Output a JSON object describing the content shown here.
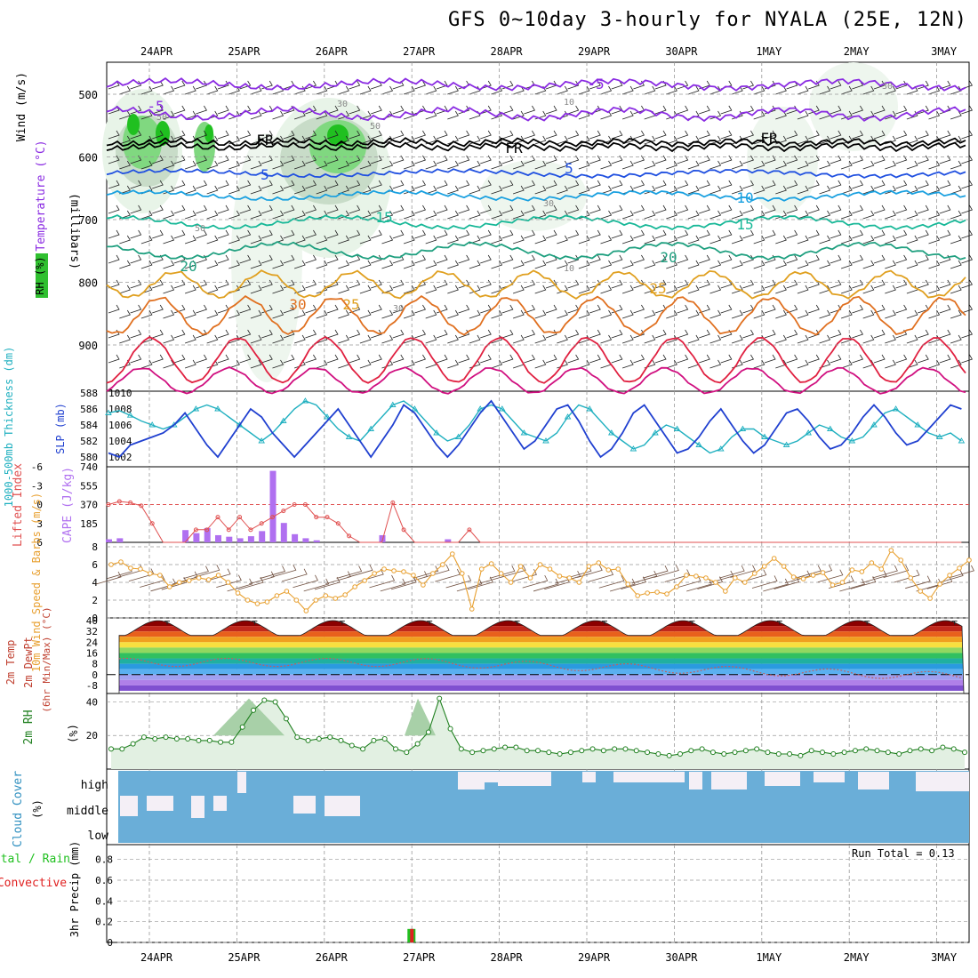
{
  "title": "GFS 0~10day 3-hourly for NYALA (25E, 12N)",
  "dates": [
    "24APR",
    "25APR",
    "26APR",
    "27APR",
    "28APR",
    "29APR",
    "30APR",
    "1MAY",
    "2MAY",
    "3MAY"
  ],
  "colors": {
    "grid": "#999999",
    "purple": "#8a2be2",
    "black": "#000000",
    "blue": "#2050e0",
    "cyan": "#19a0e0",
    "teal": "#18b898",
    "green": "#20a080",
    "orange": "#e0a020",
    "darkorange": "#e07020",
    "red": "#e02040",
    "magenta": "#d01080",
    "rhgreen": "#30c030",
    "cape": "#b070f0",
    "li": "#e05050",
    "wind10": "#e8a030",
    "slp": "#2040d0",
    "thick": "#20b0c0",
    "cloud": "#6aaed8",
    "precipGreen": "#20c020",
    "precipRed": "#e02020"
  },
  "chart_data": [
    {
      "type": "line",
      "name": "sounding",
      "labels": {
        "ylabel_mb": "(millibars)",
        "ylabel_wind": "Wind (m/s)",
        "ylabel_temp": "Temperature (°C)",
        "ylabel_rh": "RH (%)",
        "freezing": "FR"
      },
      "yticks": [
        500,
        600,
        700,
        800,
        900
      ],
      "isotherm_labels": [
        {
          "v": "-5",
          "c": "purple"
        },
        {
          "v": "-5",
          "c": "purple"
        },
        {
          "v": "FR",
          "c": "black"
        },
        {
          "v": "FR",
          "c": "black"
        },
        {
          "v": "FR",
          "c": "black"
        },
        {
          "v": "5",
          "c": "blue"
        },
        {
          "v": "5",
          "c": "blue"
        },
        {
          "v": "10",
          "c": "cyan"
        },
        {
          "v": "15",
          "c": "teal"
        },
        {
          "v": "15",
          "c": "teal"
        },
        {
          "v": "20",
          "c": "green"
        },
        {
          "v": "20",
          "c": "green"
        },
        {
          "v": "25",
          "c": "orange"
        },
        {
          "v": "25",
          "c": "orange"
        },
        {
          "v": "30",
          "c": "darkorange"
        }
      ],
      "rh_labels": [
        "50",
        "50",
        "30",
        "30",
        "10",
        "10",
        "30",
        "30",
        "50"
      ]
    },
    {
      "type": "line",
      "name": "slp-thickness",
      "ylabel_left": "1000-500mb Thickness (dm)",
      "ylabel_right": "SLP (mb)",
      "left_ticks": [
        580,
        582,
        584,
        586,
        588
      ],
      "right_ticks": [
        1002,
        1004,
        1006,
        1008,
        1010
      ],
      "slp": [
        1002.5,
        1002.0,
        1003.5,
        1004.0,
        1004.5,
        1005.0,
        1006.0,
        1007.5,
        1005.5,
        1003.5,
        1002.0,
        1004.0,
        1006.0,
        1008.0,
        1007.0,
        1005.0,
        1003.5,
        1002.0,
        1003.5,
        1005.0,
        1006.5,
        1008.0,
        1006.0,
        1004.0,
        1002.0,
        1004.0,
        1006.0,
        1008.5,
        1007.5,
        1005.5,
        1003.5,
        1002.0,
        1003.5,
        1005.5,
        1007.5,
        1009.0,
        1007.0,
        1005.0,
        1003.0,
        1004.0,
        1006.0,
        1008.0,
        1008.5,
        1006.5,
        1004.0,
        1002.0,
        1003.0,
        1005.0,
        1007.5,
        1008.5,
        1006.5,
        1004.5,
        1002.5,
        1003.0,
        1004.5,
        1006.5,
        1008.0,
        1006.0,
        1004.0,
        1002.5,
        1003.5,
        1005.5,
        1007.5,
        1008.0,
        1006.5,
        1004.5,
        1003.0,
        1003.5,
        1005.0,
        1007.0,
        1008.5,
        1007.0,
        1005.0,
        1003.5,
        1004.0,
        1005.5,
        1007.0,
        1008.5,
        1008.0
      ],
      "thickness": [
        585.5,
        585.8,
        585.2,
        584.5,
        584.0,
        583.5,
        584.0,
        585.0,
        586.0,
        586.5,
        586.0,
        585.0,
        584.0,
        583.0,
        582.0,
        583.0,
        584.5,
        586.0,
        587.0,
        586.5,
        585.0,
        583.5,
        582.5,
        582.0,
        583.5,
        585.0,
        586.5,
        587.0,
        586.0,
        584.5,
        583.0,
        582.0,
        582.5,
        584.0,
        586.0,
        586.5,
        586.0,
        584.5,
        583.0,
        582.5,
        582.0,
        583.0,
        585.0,
        586.5,
        586.0,
        584.5,
        583.0,
        582.0,
        581.0,
        581.5,
        583.0,
        584.0,
        583.5,
        582.5,
        581.5,
        580.5,
        581.0,
        582.5,
        583.5,
        583.5,
        582.5,
        582.0,
        581.5,
        582.0,
        583.0,
        584.0,
        583.5,
        582.5,
        582.0,
        582.5,
        584.0,
        585.5,
        586.0,
        585.0,
        584.0,
        583.0,
        582.5,
        583.0,
        582.0
      ]
    },
    {
      "type": "bar",
      "name": "cape-li",
      "ylabel_left": "Lifted Index",
      "ylabel_right": "CAPE (J/kg)",
      "li_ticks": [
        "-6",
        "-3",
        "0",
        "3",
        "6"
      ],
      "cape_ticks": [
        "740",
        "555",
        "370",
        "185"
      ],
      "cape": [
        30,
        40,
        0,
        0,
        0,
        0,
        0,
        120,
        90,
        140,
        70,
        55,
        40,
        60,
        110,
        700,
        190,
        80,
        40,
        20,
        0,
        0,
        0,
        0,
        0,
        70,
        0,
        0,
        0,
        0,
        0,
        30,
        0,
        0,
        0,
        0,
        0,
        0,
        0,
        0,
        0,
        0,
        0,
        0,
        0,
        0,
        0,
        0,
        0,
        0,
        0,
        0,
        0,
        0,
        0,
        0,
        0,
        0,
        0,
        0,
        0,
        0,
        0,
        0,
        0,
        0,
        0,
        0,
        0,
        0,
        0,
        0,
        0,
        0,
        0,
        0,
        0,
        0,
        0
      ],
      "li": [
        0,
        -0.5,
        -0.3,
        0.2,
        3,
        6,
        6,
        6,
        4,
        4,
        2,
        4,
        2,
        4,
        3,
        2,
        1,
        0,
        0,
        2,
        2,
        3,
        5,
        6,
        6,
        6,
        -0.3,
        4,
        6,
        6,
        6,
        6,
        6,
        4,
        6,
        6,
        6,
        6,
        6,
        6,
        6,
        6,
        6,
        6,
        6,
        6,
        6,
        6,
        6,
        6,
        6,
        6,
        6,
        6,
        6,
        6,
        6,
        6,
        6,
        6,
        6,
        6,
        6,
        6,
        6,
        6,
        6,
        6,
        6,
        6,
        6,
        6,
        6,
        6,
        6,
        6,
        6,
        6,
        6
      ]
    },
    {
      "type": "line",
      "name": "wind10m",
      "ylabel": "10m Wind Speed & Barbs (m/s)",
      "yticks": [
        0,
        2,
        4,
        6,
        8
      ],
      "speed": [
        6.0,
        6.3,
        5.6,
        5.5,
        5.0,
        4.8,
        3.5,
        4.0,
        4.2,
        4.5,
        4.3,
        4.8,
        4.0,
        2.8,
        2.0,
        1.6,
        1.8,
        2.5,
        3.0,
        2.0,
        0.8,
        2.0,
        2.5,
        2.2,
        2.6,
        3.5,
        4.2,
        5.0,
        5.5,
        5.3,
        5.2,
        4.8,
        3.7,
        5.0,
        6.0,
        7.2,
        5.0,
        1.0,
        5.5,
        6.1,
        5.0,
        4.0,
        5.8,
        4.5,
        6.0,
        5.5,
        4.7,
        4.5,
        4.0,
        5.8,
        6.2,
        5.4,
        5.5,
        3.8,
        2.5,
        2.8,
        2.9,
        2.7,
        3.5,
        4.8,
        4.7,
        4.5,
        4.0,
        3.0,
        4.5,
        4.0,
        5.0,
        5.8,
        6.7,
        5.8,
        4.6,
        4.4,
        4.8,
        5.1,
        3.7,
        4.0,
        5.4,
        5.2,
        6.2,
        5.5,
        7.6,
        6.5,
        4.5,
        3.0,
        2.2,
        3.8,
        4.8,
        5.6,
        6.5
      ]
    },
    {
      "type": "area",
      "name": "temp2m",
      "ylabel": "2m Temp 2m DewPt (6hr Min/Max) (°C)",
      "yticks": [
        "40",
        "32",
        "24",
        "16",
        "8",
        "0",
        "-8"
      ],
      "temp_max_daily": [
        40,
        40,
        40,
        40,
        40,
        40,
        40,
        40,
        40,
        40
      ],
      "temp_min_daily": [
        27,
        27,
        27,
        27,
        27,
        27,
        27,
        27,
        27,
        27
      ],
      "dewpoint_note": "dew point ~ 8 to 12 early, falling to about -6 later"
    },
    {
      "type": "area",
      "name": "rh2m",
      "ylabel": "2m RH (%)",
      "yticks": [
        20,
        40
      ],
      "rh": [
        12,
        12,
        15,
        19,
        18,
        19,
        18,
        18,
        17,
        17,
        16,
        16,
        25,
        35,
        41,
        40,
        30,
        19,
        17,
        18,
        19,
        17,
        14,
        12,
        17,
        18,
        12,
        10,
        15,
        22,
        42,
        24,
        12,
        10,
        11,
        12,
        13,
        13,
        11,
        11,
        10,
        9,
        10,
        11,
        12,
        11,
        12,
        12,
        11,
        10,
        9,
        8,
        9,
        11,
        12,
        10,
        9,
        10,
        11,
        12,
        10,
        9,
        9,
        8,
        11,
        10,
        9,
        10,
        11,
        12,
        11,
        10,
        9,
        11,
        12,
        11,
        13,
        12,
        10
      ]
    },
    {
      "type": "heatmap",
      "name": "cloud",
      "ylabel": "Cloud Cover (%)",
      "layers": [
        "high",
        "middle",
        "low"
      ]
    },
    {
      "type": "bar",
      "name": "precip",
      "ylabel": "3hr Precip (mm)",
      "legend": [
        "Total / Rain",
        "Convective"
      ],
      "legend_total": "Total / Rain",
      "legend_conv": "Convective",
      "yticks": [
        "0",
        "0.2",
        "0.4",
        "0.6",
        "0.8"
      ],
      "run_total": "Run Total = 0.13",
      "bars": [
        {
          "day_offset": 2.95,
          "total": 0.13,
          "convective": 0.13
        }
      ]
    }
  ]
}
